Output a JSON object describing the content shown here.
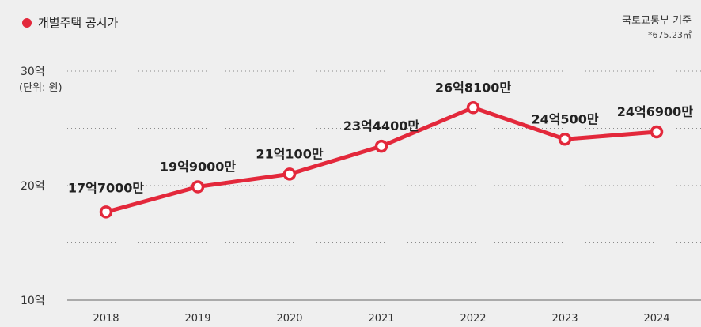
{
  "legend": {
    "label": "개별주택 공시가",
    "color": "#e3283b"
  },
  "source": {
    "line1": "국토교통부 기준",
    "line2": "*675.23㎡"
  },
  "unit_label": "(단위: 원)",
  "chart_data": {
    "type": "line",
    "categories": [
      "2018",
      "2019",
      "2020",
      "2021",
      "2022",
      "2023",
      "2024"
    ],
    "ylim": [
      10,
      30
    ],
    "yticks": [
      "10억",
      "20억",
      "30억"
    ],
    "yunit": "억",
    "grid": true,
    "series": [
      {
        "name": "개별주택 공시가",
        "color": "#e3283b",
        "values": [
          17.7,
          19.9,
          21.01,
          23.44,
          26.81,
          24.05,
          24.69
        ],
        "labels": [
          "17억7000만",
          "19억9000만",
          "21억100만",
          "23억4400만",
          "26억8100만",
          "24억500만",
          "24억6900만"
        ]
      }
    ]
  }
}
